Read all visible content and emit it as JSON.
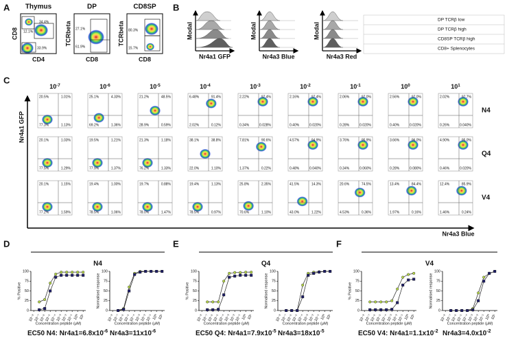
{
  "panel_labels": [
    "A",
    "B",
    "C",
    "D",
    "E",
    "F"
  ],
  "panel_a": {
    "plots": [
      {
        "title": "Thymus",
        "ylabel": "CD8",
        "xlabel": "CD4",
        "gates": [
          "12.1%",
          "34.4%",
          "33.9%"
        ]
      },
      {
        "title": "DP",
        "ylabel": "TCRbeta",
        "xlabel": "CD8",
        "gates": [
          "27.1%",
          "61.9%"
        ]
      },
      {
        "title": "CD8SP",
        "ylabel": "TCRbeta",
        "xlabel": "CD8",
        "gates": [
          "80.3%",
          "15.7%"
        ]
      }
    ]
  },
  "panel_b": {
    "ylabel": "Modal",
    "xlabels": [
      "Nr4a1 GFP",
      "Nr4a3 Blue",
      "Nr4a3 Red"
    ],
    "legend": [
      "DP TCRβ low",
      "DP TCRβ high",
      "CD8SP TCRβ high",
      "CD8+ Splenocytes"
    ]
  },
  "panel_c": {
    "ylabel": "Nr4a1 GFP",
    "xlabel": "Nr4a3 Blue",
    "columns": [
      {
        "base": "10",
        "exp": "-7"
      },
      {
        "base": "10",
        "exp": "-6"
      },
      {
        "base": "10",
        "exp": "-5"
      },
      {
        "base": "10",
        "exp": "-4"
      },
      {
        "base": "10",
        "exp": "-3"
      },
      {
        "base": "10",
        "exp": "-2"
      },
      {
        "base": "10",
        "exp": "-1"
      },
      {
        "base": "10",
        "exp": "0"
      },
      {
        "base": "10",
        "exp": "1"
      }
    ],
    "rows": [
      {
        "label": "N4",
        "plots": [
          [
            "20.5%",
            "1.01%",
            "77.3%",
            "1.13%"
          ],
          [
            "25.1%",
            "4.33%",
            "69.2%",
            "1.36%"
          ],
          [
            "21.2%",
            "48.5%",
            "28.9%",
            "0.59%"
          ],
          [
            "6.48%",
            "91.4%",
            "2.02%",
            "0.12%"
          ],
          [
            "2.22%",
            "97.4%",
            "0.34%",
            "0.028%"
          ],
          [
            "2.16%",
            "97.4%",
            "0.40%",
            "0.020%"
          ],
          [
            "2.06%",
            "97.0%",
            "0.28%",
            "0.020%"
          ],
          [
            "2.56%",
            "97.0%",
            "0.40%",
            "0.020%"
          ],
          [
            "2.02%",
            "97.7%",
            "0.26%",
            "0.040%"
          ]
        ]
      },
      {
        "label": "Q4",
        "plots": [
          [
            "20.1%",
            "1.03%",
            "77.5%",
            "1.29%"
          ],
          [
            "19.5%",
            "1.21%",
            "77.9%",
            "1.37%"
          ],
          [
            "21.3%",
            "1.18%",
            "76.2%",
            "1.33%"
          ],
          [
            "38.1%",
            "38.8%",
            "22.0%",
            "1.10%"
          ],
          [
            "7.81%",
            "90.6%",
            "1.37%",
            "0.22%"
          ],
          [
            "4.57%",
            "94.9%",
            "0.48%",
            "0.040%"
          ],
          [
            "3.76%",
            "95.9%",
            "0.34%",
            "0.060%"
          ],
          [
            "3.66%",
            "96.0%",
            "0.28%",
            "0.080%"
          ],
          [
            "4.90%",
            "95.0%",
            "0.46%",
            "0.020%"
          ]
        ]
      },
      {
        "label": "V4",
        "plots": [
          [
            "20.1%",
            "1.15%",
            "77.2%",
            "1.59%"
          ],
          [
            "19.4%",
            "1.00%",
            "78.5%",
            "1.06%"
          ],
          [
            "19.7%",
            "0.88%",
            "78.0%",
            "1.47%"
          ],
          [
            "19.4%",
            "1.13%",
            "78.5%",
            "0.97%"
          ],
          [
            "25.8%",
            "2.35%",
            "70.6%",
            "1.10%"
          ],
          [
            "41.5%",
            "14.3%",
            "43.0%",
            "1.22%"
          ],
          [
            "20.6%",
            "74.5%",
            "4.53%",
            "0.36%"
          ],
          [
            "13.4%",
            "84.4%",
            "1.97%",
            "0.16%"
          ],
          [
            "12.4%",
            "85.9%",
            "1.46%",
            "0.24%"
          ]
        ]
      }
    ]
  },
  "panel_def": {
    "titles": [
      "N4",
      "Q4",
      "V4"
    ],
    "captions": [
      [
        {
          "text": "EC50 N4: Nr4a1=6.8x10",
          "exp": "-6"
        },
        {
          "text": "Nr4a3=11x10",
          "exp": "-6"
        }
      ],
      [
        {
          "text": "EC50 Q4: Nr4a1=7.9x10",
          "exp": "-5"
        },
        {
          "text": "Nr4a3=18x10",
          "exp": "-5"
        }
      ],
      [
        {
          "text": "EC50 V4: Nr4a1=1.1x10",
          "exp": "-2"
        },
        {
          "text": "Nr4a3=4.0x10",
          "exp": "-2"
        }
      ]
    ]
  },
  "chart_data": [
    {
      "type": "line",
      "ylabel": "% Positive",
      "xlabel": "Concentration peptide (μM)",
      "xlog": true,
      "x": [
        1e-07,
        1e-06,
        1e-05,
        0.0001,
        0.001,
        0.01,
        0.1,
        1,
        10
      ],
      "xlim": [
        3e-09,
        30
      ],
      "xticks": [
        {
          "value": 1e-08,
          "label": "10⁻⁸"
        },
        {
          "value": 1e-07,
          "label": "10⁻⁷"
        },
        {
          "value": 1e-06,
          "label": "10⁻⁶"
        },
        {
          "value": 1e-05,
          "label": "10⁻⁵"
        },
        {
          "value": 0.0001,
          "label": "10⁻⁴"
        },
        {
          "value": 0.001,
          "label": "10⁻³"
        },
        {
          "value": 0.01,
          "label": "10⁻²"
        },
        {
          "value": 0.1,
          "label": "10⁻¹"
        },
        {
          "value": 1,
          "label": "10⁰"
        },
        {
          "value": 10,
          "label": "10¹"
        }
      ],
      "ylim": [
        0,
        100
      ],
      "yticks": [
        0,
        25,
        50,
        75,
        100
      ],
      "series": [
        {
          "color": "#b8d94a",
          "values": [
            22,
            28,
            70,
            93,
            98,
            98,
            98,
            98,
            98
          ]
        },
        {
          "color": "#1f1f6b",
          "values": [
            2,
            5,
            50,
            85,
            90,
            90,
            90,
            90,
            90
          ]
        }
      ]
    },
    {
      "type": "line",
      "ylabel": "Normalised response",
      "xlabel": "Concentration peptide (μM)",
      "xlog": true,
      "x": [
        1e-07,
        1e-06,
        1e-05,
        0.0001,
        0.001,
        0.01,
        0.1,
        1,
        10
      ],
      "xlim": [
        3e-09,
        30
      ],
      "xticks": [
        {
          "value": 1e-08,
          "label": "10⁻⁸"
        },
        {
          "value": 1e-07,
          "label": "10⁻⁷"
        },
        {
          "value": 1e-06,
          "label": "10⁻⁶"
        },
        {
          "value": 1e-05,
          "label": "10⁻⁵"
        },
        {
          "value": 0.0001,
          "label": "10⁻⁴"
        },
        {
          "value": 0.001,
          "label": "10⁻³"
        },
        {
          "value": 0.01,
          "label": "10⁻²"
        },
        {
          "value": 0.1,
          "label": "10⁻¹"
        },
        {
          "value": 1,
          "label": "10⁰"
        },
        {
          "value": 10,
          "label": "10¹"
        }
      ],
      "ylim": [
        0,
        100
      ],
      "yticks": [
        0,
        25,
        50,
        75,
        100
      ],
      "series": [
        {
          "color": "#b8d94a",
          "values": [
            0,
            5,
            60,
            95,
            100,
            100,
            100,
            100,
            100
          ]
        },
        {
          "color": "#1f1f6b",
          "values": [
            0,
            3,
            50,
            92,
            98,
            100,
            100,
            100,
            100
          ]
        }
      ]
    },
    {
      "type": "line",
      "ylabel": "% Positive",
      "xlabel": "Concentration peptide (μM)",
      "xlog": true,
      "x": [
        1e-07,
        1e-06,
        1e-05,
        0.0001,
        0.001,
        0.01,
        0.1,
        1,
        10
      ],
      "xlim": [
        3e-09,
        30
      ],
      "xticks": [
        {
          "value": 1e-08,
          "label": "10⁻⁸"
        },
        {
          "value": 1e-07,
          "label": "10⁻⁷"
        },
        {
          "value": 1e-06,
          "label": "10⁻⁶"
        },
        {
          "value": 1e-05,
          "label": "10⁻⁵"
        },
        {
          "value": 0.0001,
          "label": "10⁻⁴"
        },
        {
          "value": 0.001,
          "label": "10⁻³"
        },
        {
          "value": 0.01,
          "label": "10⁻²"
        },
        {
          "value": 0.1,
          "label": "10⁻¹"
        },
        {
          "value": 1,
          "label": "10⁰"
        },
        {
          "value": 10,
          "label": "10¹"
        }
      ],
      "ylim": [
        0,
        100
      ],
      "yticks": [
        0,
        25,
        50,
        75,
        100
      ],
      "series": [
        {
          "color": "#b8d94a",
          "values": [
            22,
            22,
            22,
            75,
            95,
            97,
            97,
            98,
            98
          ]
        },
        {
          "color": "#1f1f6b",
          "values": [
            2,
            2,
            3,
            40,
            85,
            88,
            90,
            90,
            90
          ]
        }
      ]
    },
    {
      "type": "line",
      "ylabel": "Normalised response",
      "xlabel": "Concentration peptide (μM)",
      "xlog": true,
      "x": [
        1e-07,
        1e-06,
        1e-05,
        0.0001,
        0.001,
        0.01,
        0.1,
        1,
        10
      ],
      "xlim": [
        3e-09,
        30
      ],
      "xticks": [
        {
          "value": 1e-08,
          "label": "10⁻⁸"
        },
        {
          "value": 1e-07,
          "label": "10⁻⁷"
        },
        {
          "value": 1e-06,
          "label": "10⁻⁶"
        },
        {
          "value": 1e-05,
          "label": "10⁻⁵"
        },
        {
          "value": 0.0001,
          "label": "10⁻⁴"
        },
        {
          "value": 0.001,
          "label": "10⁻³"
        },
        {
          "value": 0.01,
          "label": "10⁻²"
        },
        {
          "value": 0.1,
          "label": "10⁻¹"
        },
        {
          "value": 1,
          "label": "10⁰"
        },
        {
          "value": 10,
          "label": "10¹"
        }
      ],
      "ylim": [
        0,
        100
      ],
      "yticks": [
        0,
        25,
        50,
        75,
        100
      ],
      "series": [
        {
          "color": "#b8d94a",
          "values": [
            0,
            0,
            0,
            65,
            95,
            98,
            99,
            100,
            100
          ]
        },
        {
          "color": "#1f1f6b",
          "values": [
            0,
            0,
            0,
            35,
            90,
            95,
            98,
            100,
            100
          ]
        }
      ]
    },
    {
      "type": "line",
      "ylabel": "% Positive",
      "xlabel": "Concentration peptide (μM)",
      "xlog": true,
      "x": [
        1e-07,
        1e-06,
        1e-05,
        0.0001,
        0.001,
        0.01,
        0.1,
        1,
        10
      ],
      "xlim": [
        3e-09,
        30
      ],
      "xticks": [
        {
          "value": 1e-08,
          "label": "10⁻⁸"
        },
        {
          "value": 1e-07,
          "label": "10⁻⁷"
        },
        {
          "value": 1e-06,
          "label": "10⁻⁶"
        },
        {
          "value": 1e-05,
          "label": "10⁻⁵"
        },
        {
          "value": 0.0001,
          "label": "10⁻⁴"
        },
        {
          "value": 0.001,
          "label": "10⁻³"
        },
        {
          "value": 0.01,
          "label": "10⁻²"
        },
        {
          "value": 0.1,
          "label": "10⁻¹"
        },
        {
          "value": 1,
          "label": "10⁰"
        },
        {
          "value": 10,
          "label": "10¹"
        }
      ],
      "ylim": [
        0,
        100
      ],
      "yticks": [
        0,
        25,
        50,
        75,
        100
      ],
      "series": [
        {
          "color": "#b8d94a",
          "values": [
            22,
            22,
            22,
            22,
            25,
            55,
            85,
            92,
            95
          ]
        },
        {
          "color": "#1f1f6b",
          "values": [
            2,
            2,
            2,
            2,
            3,
            20,
            65,
            78,
            80
          ]
        }
      ]
    },
    {
      "type": "line",
      "ylabel": "Normalised response",
      "xlabel": "Concentration peptide (μM)",
      "xlog": true,
      "x": [
        1e-07,
        1e-06,
        1e-05,
        0.0001,
        0.001,
        0.01,
        0.1,
        1,
        10
      ],
      "xlim": [
        3e-09,
        30
      ],
      "xticks": [
        {
          "value": 1e-08,
          "label": "10⁻⁸"
        },
        {
          "value": 1e-07,
          "label": "10⁻⁷"
        },
        {
          "value": 1e-06,
          "label": "10⁻⁶"
        },
        {
          "value": 1e-05,
          "label": "10⁻⁵"
        },
        {
          "value": 0.0001,
          "label": "10⁻⁴"
        },
        {
          "value": 0.001,
          "label": "10⁻³"
        },
        {
          "value": 0.01,
          "label": "10⁻²"
        },
        {
          "value": 0.1,
          "label": "10⁻¹"
        },
        {
          "value": 1,
          "label": "10⁰"
        },
        {
          "value": 10,
          "label": "10¹"
        }
      ],
      "ylim": [
        0,
        100
      ],
      "yticks": [
        0,
        25,
        50,
        75,
        100
      ],
      "series": [
        {
          "color": "#b8d94a",
          "values": [
            0,
            0,
            0,
            0,
            5,
            45,
            85,
            95,
            100
          ]
        },
        {
          "color": "#1f1f6b",
          "values": [
            0,
            0,
            0,
            0,
            2,
            25,
            75,
            95,
            100
          ]
        }
      ]
    }
  ]
}
